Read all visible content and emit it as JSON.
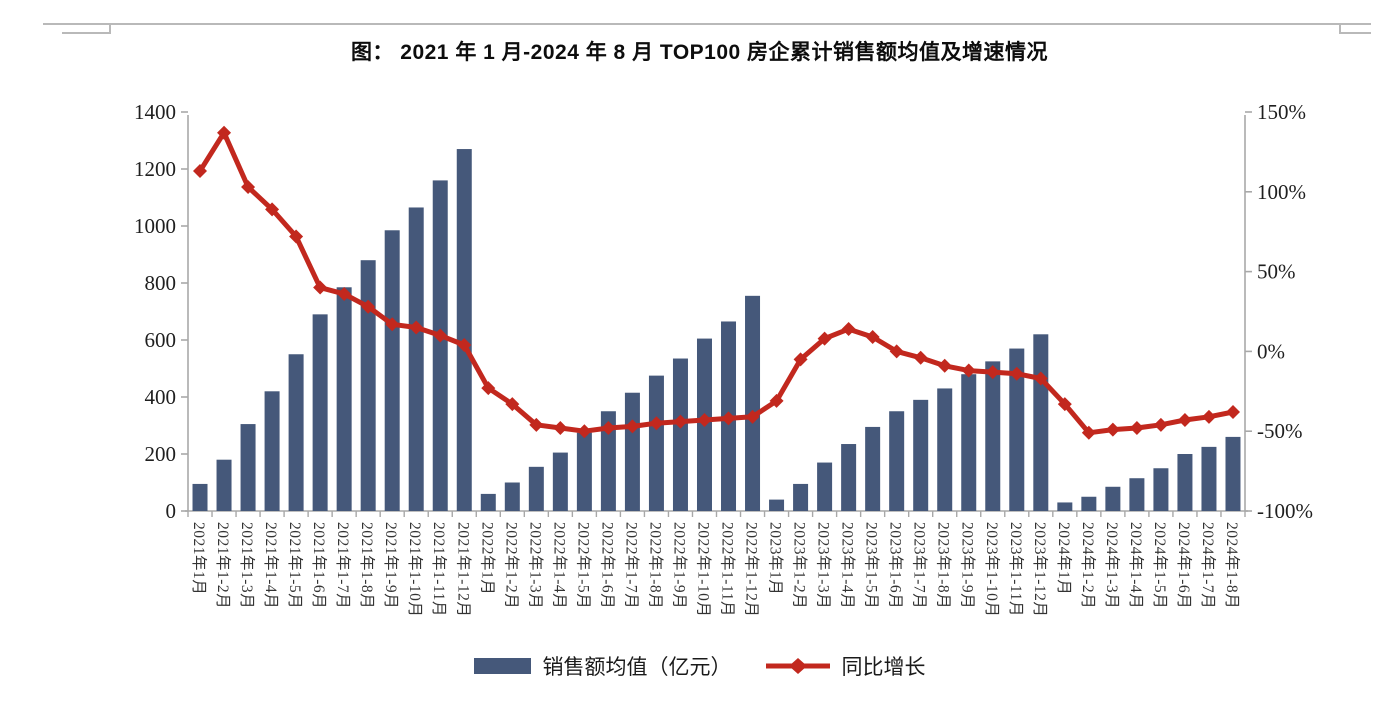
{
  "title": {
    "text": "图：  2021 年 1 月-2024 年 8 月 TOP100 房企累计销售额均值及增速情况"
  },
  "chart_data": {
    "type": "combo-bar-line",
    "title": "2021年1月-2024年8月TOP100房企累计销售额均值及增速情况",
    "categories": [
      "2021年1月",
      "2021年1-2月",
      "2021年1-3月",
      "2021年1-4月",
      "2021年1-5月",
      "2021年1-6月",
      "2021年1-7月",
      "2021年1-8月",
      "2021年1-9月",
      "2021年1-10月",
      "2021年1-11月",
      "2021年1-12月",
      "2022年1月",
      "2022年1-2月",
      "2022年1-3月",
      "2022年1-4月",
      "2022年1-5月",
      "2022年1-6月",
      "2022年1-7月",
      "2022年1-8月",
      "2022年1-9月",
      "2022年1-10月",
      "2022年1-11月",
      "2022年1-12月",
      "2023年1月",
      "2023年1-2月",
      "2023年1-3月",
      "2023年1-4月",
      "2023年1-5月",
      "2023年1-6月",
      "2023年1-7月",
      "2023年1-8月",
      "2023年1-9月",
      "2023年1-10月",
      "2023年1-11月",
      "2023年1-12月",
      "2024年1月",
      "2024年1-2月",
      "2024年1-3月",
      "2024年1-4月",
      "2024年1-5月",
      "2024年1-6月",
      "2024年1-7月",
      "2024年1-8月"
    ],
    "series": [
      {
        "name": "销售额均值（亿元）",
        "type": "bar",
        "axis": "left",
        "color": "#45587A",
        "values": [
          95,
          180,
          305,
          420,
          550,
          690,
          785,
          880,
          985,
          1065,
          1160,
          1270,
          60,
          100,
          155,
          205,
          275,
          350,
          415,
          475,
          535,
          605,
          665,
          755,
          40,
          95,
          170,
          235,
          295,
          350,
          390,
          430,
          480,
          525,
          570,
          620,
          30,
          50,
          85,
          115,
          150,
          200,
          225,
          260
        ]
      },
      {
        "name": "同比增长",
        "type": "line",
        "axis": "right",
        "color": "#C2281E",
        "values": [
          113,
          137,
          103,
          89,
          72,
          40,
          36,
          28,
          17,
          15,
          10,
          4,
          -23,
          -33,
          -46,
          -48,
          -50,
          -48,
          -47,
          -45,
          -44,
          -43,
          -42,
          -41,
          -31,
          -5,
          8,
          14,
          9,
          0,
          -4,
          -9,
          -12,
          -13,
          -14,
          -17,
          -33,
          -51,
          -49,
          -48,
          -46,
          -43,
          -41,
          -38
        ]
      }
    ],
    "left_axis": {
      "min": 0,
      "max": 1400,
      "step": 200,
      "ticks": [
        "0",
        "200",
        "400",
        "600",
        "800",
        "1000",
        "1200",
        "1400"
      ]
    },
    "right_axis": {
      "min": -100,
      "max": 150,
      "step": 50,
      "format": "percent",
      "ticks": [
        "-100%",
        "-50%",
        "0%",
        "50%",
        "100%",
        "150%"
      ]
    },
    "legend": [
      "销售额均值（亿元）",
      "同比增长"
    ],
    "legend_position": "bottom",
    "grid": false
  }
}
